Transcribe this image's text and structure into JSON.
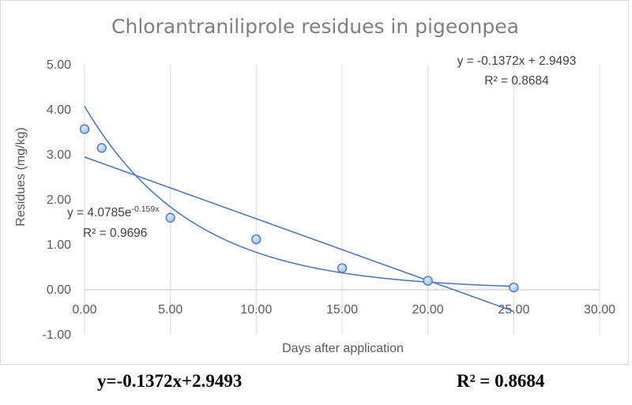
{
  "chart_data": {
    "type": "scatter",
    "title": "Chlorantraniliprole residues in pigeonpea",
    "xlabel": "Days after application",
    "ylabel": "Residues (mg/kg)",
    "xlim": [
      0,
      30
    ],
    "ylim": [
      -1,
      5
    ],
    "x_ticks": [
      "0.00",
      "5.00",
      "10.00",
      "15.00",
      "20.00",
      "25.00",
      "30.00"
    ],
    "y_ticks": [
      "5.00",
      "4.00",
      "3.00",
      "2.00",
      "1.00",
      "0.00",
      "-1.00"
    ],
    "x_tick_values": [
      0,
      5,
      10,
      15,
      20,
      25,
      30
    ],
    "y_tick_values": [
      5,
      4,
      3,
      2,
      1,
      0,
      -1
    ],
    "grid": "vertical",
    "series": [
      {
        "x": [
          0,
          1,
          5,
          10,
          15,
          20,
          25
        ],
        "y": [
          3.57,
          3.15,
          1.6,
          1.12,
          0.48,
          0.2,
          0.05
        ],
        "marker_color": "#9dc3e6",
        "marker_edge": "#4472c4"
      }
    ],
    "trendlines": [
      {
        "type": "linear",
        "slope": -0.1372,
        "intercept": 2.9493,
        "x_range": [
          0,
          25
        ],
        "equation": "y = -0.1372x + 2.9493",
        "r2_label": "R² = 0.8684",
        "color": "#4472c4"
      },
      {
        "type": "exponential",
        "a": 4.0785,
        "b": -0.159,
        "x_range": [
          0,
          25
        ],
        "equation_base": "y = 4.0785e",
        "equation_exp": "-0.159x",
        "r2_label": "R² = 0.9696",
        "color": "#4472c4"
      }
    ]
  },
  "caption": {
    "equation": "y=-0.1372x+2.9493",
    "r2": "R² = 0.8684"
  }
}
